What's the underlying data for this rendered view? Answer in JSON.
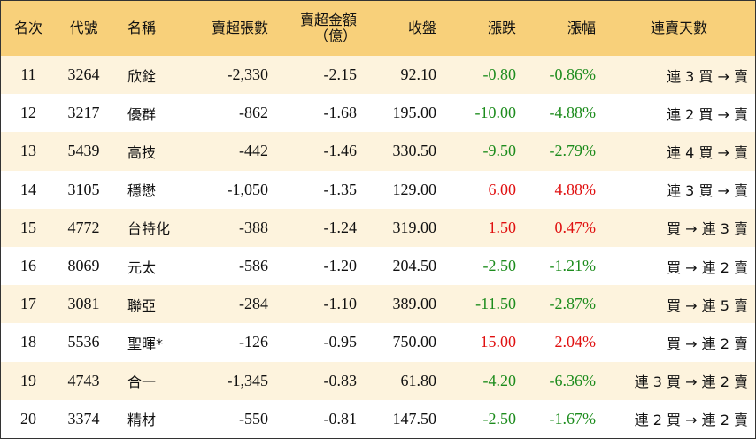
{
  "table": {
    "header": [
      "名次",
      "代號",
      "名稱",
      "賣超張數",
      "賣超金額\n（億）",
      "收盤",
      "漲跌",
      "漲幅",
      "連賣天數"
    ],
    "rows": [
      [
        "11",
        "3264",
        "欣銓",
        "-2,330",
        "-2.15",
        "92.10",
        "-0.80",
        "-0.86%",
        "連 3 買 → 賣"
      ],
      [
        "12",
        "3217",
        "優群",
        "-862",
        "-1.68",
        "195.00",
        "-10.00",
        "-4.88%",
        "連 2 買 → 賣"
      ],
      [
        "13",
        "5439",
        "高技",
        "-442",
        "-1.46",
        "330.50",
        "-9.50",
        "-2.79%",
        "連 4 買 → 賣"
      ],
      [
        "14",
        "3105",
        "穩懋",
        "-1,050",
        "-1.35",
        "129.00",
        "6.00",
        "4.88%",
        "連 3 買 → 賣"
      ],
      [
        "15",
        "4772",
        "台特化",
        "-388",
        "-1.24",
        "319.00",
        "1.50",
        "0.47%",
        "買 → 連 3 賣"
      ],
      [
        "16",
        "8069",
        "元太",
        "-586",
        "-1.20",
        "204.50",
        "-2.50",
        "-1.21%",
        "買 → 連 2 賣"
      ],
      [
        "17",
        "3081",
        "聯亞",
        "-284",
        "-1.10",
        "389.00",
        "-11.50",
        "-2.87%",
        "買 → 連 5 賣"
      ],
      [
        "18",
        "5536",
        "聖暉*",
        "-126",
        "-0.95",
        "750.00",
        "15.00",
        "2.04%",
        "買 → 連 2 賣"
      ],
      [
        "19",
        "4743",
        "合一",
        "-1,345",
        "-0.83",
        "61.80",
        "-4.20",
        "-6.36%",
        "連 3 買 → 連 2 賣"
      ],
      [
        "20",
        "3374",
        "精材",
        "-550",
        "-0.81",
        "147.50",
        "-2.50",
        "-1.67%",
        "連 2 買 → 連 2 賣"
      ]
    ]
  }
}
